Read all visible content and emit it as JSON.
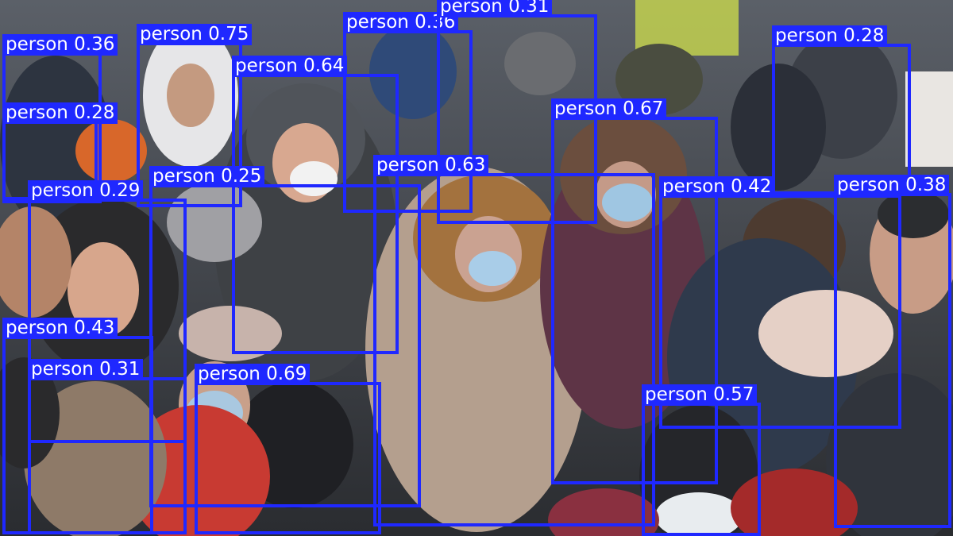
{
  "image": {
    "description_colors": {
      "box": "#1f28ff",
      "label_text": "#ffffff"
    }
  },
  "detections": [
    {
      "label": "person",
      "score": "0.36"
    },
    {
      "label": "person",
      "score": "0.75"
    },
    {
      "label": "person",
      "score": "0.36"
    },
    {
      "label": "person",
      "score": "0.31"
    },
    {
      "label": "person",
      "score": "0.64"
    },
    {
      "label": "person",
      "score": "0.28"
    },
    {
      "label": "person",
      "score": "0.28"
    },
    {
      "label": "person",
      "score": "0.67"
    },
    {
      "label": "person",
      "score": "0.25"
    },
    {
      "label": "person",
      "score": "0.63"
    },
    {
      "label": "person",
      "score": "0.29"
    },
    {
      "label": "person",
      "score": "0.42"
    },
    {
      "label": "person",
      "score": "0.38"
    },
    {
      "label": "person",
      "score": "0.43"
    },
    {
      "label": "person",
      "score": "0.31"
    },
    {
      "label": "person",
      "score": "0.69"
    },
    {
      "label": "person",
      "score": "0.57"
    }
  ]
}
